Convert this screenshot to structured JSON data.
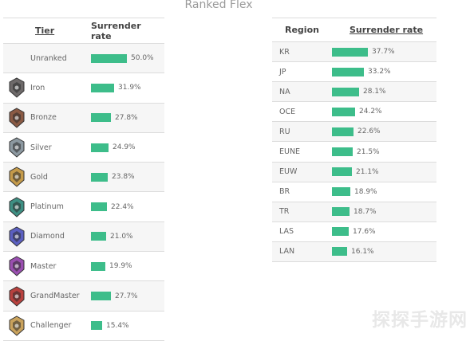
{
  "page": {
    "title": "Ranked Flex"
  },
  "watermark": "探探手游网",
  "colors": {
    "bar": "#3dbd8a",
    "row_alt": "#f6f6f6",
    "border": "#dcdcdc"
  },
  "chart_data": [
    {
      "type": "bar",
      "orientation": "horizontal",
      "headers": {
        "category": "Tier",
        "value": "Surrender rate"
      },
      "categories": [
        "Unranked",
        "Iron",
        "Bronze",
        "Silver",
        "Gold",
        "Platinum",
        "Diamond",
        "Master",
        "GrandMaster",
        "Challenger"
      ],
      "values": [
        50.0,
        31.9,
        27.8,
        24.9,
        23.8,
        22.4,
        21.0,
        19.9,
        27.7,
        15.4
      ],
      "labels": [
        "50.0%",
        "31.9%",
        "27.8%",
        "24.9%",
        "23.8%",
        "22.4%",
        "21.0%",
        "19.9%",
        "27.7%",
        "15.4%"
      ],
      "icons": [
        "",
        "iron-emblem-icon",
        "bronze-emblem-icon",
        "silver-emblem-icon",
        "gold-emblem-icon",
        "platinum-emblem-icon",
        "diamond-emblem-icon",
        "master-emblem-icon",
        "grandmaster-emblem-icon",
        "challenger-emblem-icon"
      ],
      "icon_colors": [
        "",
        "#6e6a6a",
        "#8a5a44",
        "#8c98a0",
        "#c49a4a",
        "#3e8f83",
        "#5b5fc0",
        "#9a4fb0",
        "#b8413e",
        "#c9a25c"
      ],
      "xlim": [
        0,
        50
      ]
    },
    {
      "type": "bar",
      "orientation": "horizontal",
      "headers": {
        "category": "Region",
        "value": "Surrender rate"
      },
      "categories": [
        "KR",
        "JP",
        "NA",
        "OCE",
        "RU",
        "EUNE",
        "EUW",
        "BR",
        "TR",
        "LAS",
        "LAN"
      ],
      "values": [
        37.7,
        33.2,
        28.1,
        24.2,
        22.6,
        21.5,
        21.1,
        18.9,
        18.7,
        17.6,
        16.1
      ],
      "labels": [
        "37.7%",
        "33.2%",
        "28.1%",
        "24.2%",
        "22.6%",
        "21.5%",
        "21.1%",
        "18.9%",
        "18.7%",
        "17.6%",
        "16.1%"
      ],
      "xlim": [
        0,
        37.7
      ]
    }
  ]
}
